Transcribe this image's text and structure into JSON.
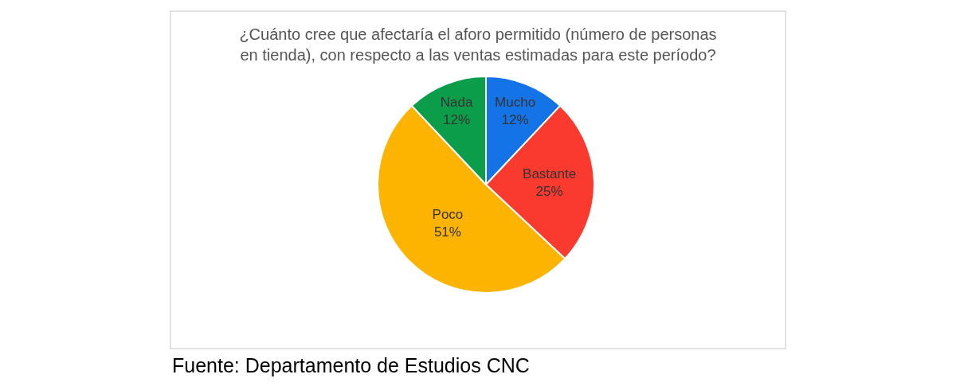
{
  "chart_data": {
    "type": "pie",
    "title": "¿Cuánto cree que afectaría el aforo permitido (número de personas en tienda), con respecto a las ventas estimadas para este período?",
    "categories": [
      "Mucho",
      "Bastante",
      "Poco",
      "Nada"
    ],
    "values": [
      12,
      25,
      51,
      12
    ],
    "value_labels": [
      "12%",
      "25%",
      "51%",
      "12%"
    ],
    "colors": [
      "#1473e6",
      "#fa3a2f",
      "#fdb400",
      "#0c9d4a"
    ],
    "annotations": [
      "Fuente: Departamento de Estudios CNC"
    ]
  }
}
